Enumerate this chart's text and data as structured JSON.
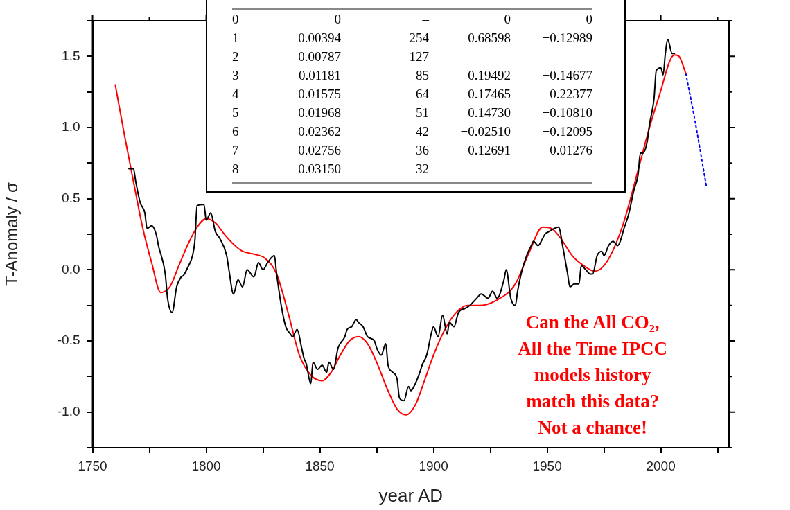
{
  "chart_data": {
    "type": "line",
    "xlabel": "year AD",
    "ylabel": "T-Anomaly / σ",
    "xlim": [
      1750,
      2030
    ],
    "ylim": [
      -1.25,
      1.75
    ],
    "xticks": [
      1750,
      {
        "value": 1775,
        "label": null
      },
      1800,
      {
        "value": 1825,
        "label": null
      },
      1850,
      {
        "value": 1875,
        "label": null
      },
      1900,
      {
        "value": 1925,
        "label": null
      },
      1950,
      {
        "value": 1975,
        "label": null
      },
      2000,
      {
        "value": 2025,
        "label": null
      }
    ],
    "yticks": [
      {
        "value": -1.25,
        "label": null
      },
      {
        "value": -1,
        "label": "-1.0"
      },
      {
        "value": -0.75,
        "label": null
      },
      {
        "value": -0.5,
        "label": "-0.5"
      },
      {
        "value": -0.25,
        "label": null
      },
      {
        "value": 0,
        "label": "0.0"
      },
      {
        "value": 0.25,
        "label": null
      },
      {
        "value": 0.5,
        "label": "0.5"
      },
      {
        "value": 0.75,
        "label": null
      },
      {
        "value": 1,
        "label": "1.0"
      },
      {
        "value": 1.25,
        "label": null
      },
      {
        "value": 1.5,
        "label": "1.5"
      },
      {
        "value": 1.75,
        "label": null
      }
    ],
    "grid": false,
    "legend": false,
    "marker": "none",
    "series": [
      {
        "color": "#000000",
        "line_style": "solid",
        "x": [
          1766,
          1768,
          1769,
          1771,
          1773,
          1774,
          1776,
          1778,
          1779,
          1782,
          1783,
          1785,
          1787,
          1789,
          1790,
          1792,
          1794,
          1795,
          1796,
          1799,
          1800,
          1802,
          1804,
          1806,
          1809,
          1810,
          1812,
          1814,
          1816,
          1818,
          1821,
          1823,
          1825,
          1827,
          1830,
          1831,
          1833,
          1835,
          1837,
          1838,
          1840,
          1842,
          1843,
          1844,
          1846,
          1847,
          1849,
          1851,
          1853,
          1854,
          1856,
          1858,
          1861,
          1862,
          1864,
          1866,
          1867,
          1869,
          1871,
          1874,
          1875,
          1877,
          1879,
          1880,
          1882,
          1884,
          1885,
          1887,
          1889,
          1890,
          1892,
          1894,
          1895,
          1897,
          1899,
          1900,
          1902,
          1904,
          1906,
          1907,
          1909,
          1911,
          1914,
          1916,
          1919,
          1921,
          1924,
          1926,
          1928,
          1931,
          1932,
          1934,
          1936,
          1937,
          1939,
          1941,
          1943,
          1944,
          1946,
          1948,
          1949,
          1951,
          1953,
          1955,
          1957,
          1959,
          1960,
          1962,
          1964,
          1965,
          1967,
          1969,
          1970,
          1972,
          1974,
          1975,
          1977,
          1979,
          1981,
          1984,
          1986,
          1988,
          1990,
          1991,
          1992,
          1994,
          1995,
          1997,
          1998,
          2000,
          2001,
          2002,
          2003,
          2005,
          2006
        ],
        "values": [
          0.71,
          0.71,
          0.62,
          0.47,
          0.4,
          0.29,
          0.31,
          0.25,
          0.17,
          -0.03,
          -0.2,
          -0.3,
          -0.12,
          -0.05,
          -0.04,
          0.02,
          0.1,
          0.2,
          0.45,
          0.46,
          0.35,
          0.4,
          0.27,
          0.22,
          0.1,
          0,
          -0.17,
          -0.07,
          -0.12,
          0,
          -0.05,
          0.05,
          0,
          0.05,
          0.1,
          -0.03,
          -0.25,
          -0.4,
          -0.45,
          -0.47,
          -0.42,
          -0.55,
          -0.62,
          -0.66,
          -0.8,
          -0.65,
          -0.7,
          -0.67,
          -0.72,
          -0.65,
          -0.7,
          -0.55,
          -0.47,
          -0.42,
          -0.4,
          -0.35,
          -0.37,
          -0.4,
          -0.47,
          -0.5,
          -0.55,
          -0.6,
          -0.52,
          -0.67,
          -0.72,
          -0.77,
          -0.9,
          -0.92,
          -0.82,
          -0.85,
          -0.8,
          -0.72,
          -0.67,
          -0.6,
          -0.45,
          -0.4,
          -0.47,
          -0.32,
          -0.45,
          -0.37,
          -0.4,
          -0.3,
          -0.27,
          -0.25,
          -0.2,
          -0.17,
          -0.2,
          -0.15,
          -0.2,
          -0.07,
          0,
          -0.2,
          -0.25,
          -0.15,
          0,
          0.1,
          0.17,
          0.2,
          0.17,
          0.22,
          0.25,
          0.27,
          0.29,
          0.3,
          0.15,
          -0.03,
          -0.12,
          -0.1,
          -0.1,
          0.03,
          0,
          -0.03,
          -0.03,
          0.1,
          0.13,
          0.1,
          0.17,
          0.2,
          0.17,
          0.3,
          0.4,
          0.55,
          0.67,
          0.82,
          0.82,
          0.9,
          1.02,
          1.2,
          1.4,
          1.42,
          1.37,
          1.52,
          1.62,
          1.52,
          1.52
        ]
      },
      {
        "color": "#ff0000",
        "line_style": "solid",
        "x": [
          1760,
          1764,
          1768,
          1772,
          1776,
          1780,
          1784,
          1788,
          1792,
          1796,
          1800,
          1804,
          1808,
          1812,
          1816,
          1821,
          1826,
          1831,
          1836,
          1841,
          1846,
          1851,
          1855,
          1859,
          1863,
          1867,
          1871,
          1875,
          1880,
          1884,
          1888,
          1892,
          1896,
          1900,
          1905,
          1910,
          1915,
          1920,
          1927,
          1936,
          1942,
          1948,
          1952,
          1956,
          1961,
          1966,
          1971,
          1976,
          1983,
          1990,
          1995,
          2000,
          2004,
          2006,
          2008,
          2011
        ],
        "values": [
          1.3,
          0.95,
          0.62,
          0.3,
          0.05,
          -0.16,
          -0.12,
          0.03,
          0.18,
          0.3,
          0.36,
          0.33,
          0.25,
          0.18,
          0.13,
          0.11,
          0.08,
          -0.03,
          -0.3,
          -0.6,
          -0.74,
          -0.78,
          -0.72,
          -0.6,
          -0.5,
          -0.47,
          -0.52,
          -0.65,
          -0.85,
          -0.98,
          -1.02,
          -0.95,
          -0.78,
          -0.6,
          -0.42,
          -0.3,
          -0.25,
          -0.25,
          -0.22,
          -0.1,
          0.12,
          0.3,
          0.29,
          0.22,
          0.1,
          0.03,
          -0.01,
          0.05,
          0.3,
          0.7,
          1.0,
          1.26,
          1.47,
          1.51,
          1.5,
          1.38
        ]
      },
      {
        "color": "#0000ff",
        "line_style": "dotted",
        "x": [
          2011,
          2015,
          2020
        ],
        "values": [
          1.38,
          1.05,
          0.59
        ]
      }
    ],
    "annotations": [
      "Can the All CO₂,\nAll the Time IPCC\nmodels history\nmatch this data?\nNot a chance!",
      "0\t0\t–\t0\t0",
      "1\t0.00394\t254\t0.68598\t−0.12989",
      "2\t0.00787\t127\t–\t–",
      "3\t0.01181\t85\t0.19492\t−0.14677",
      "4\t0.01575\t64\t0.17465\t−0.22377",
      "5\t0.01968\t51\t0.14730\t−0.10810",
      "6\t0.02362\t42\t−0.02510\t−0.12095",
      "7\t0.02756\t36\t0.12691\t0.01276",
      "8\t0.03150\t32\t–\t–"
    ]
  }
}
